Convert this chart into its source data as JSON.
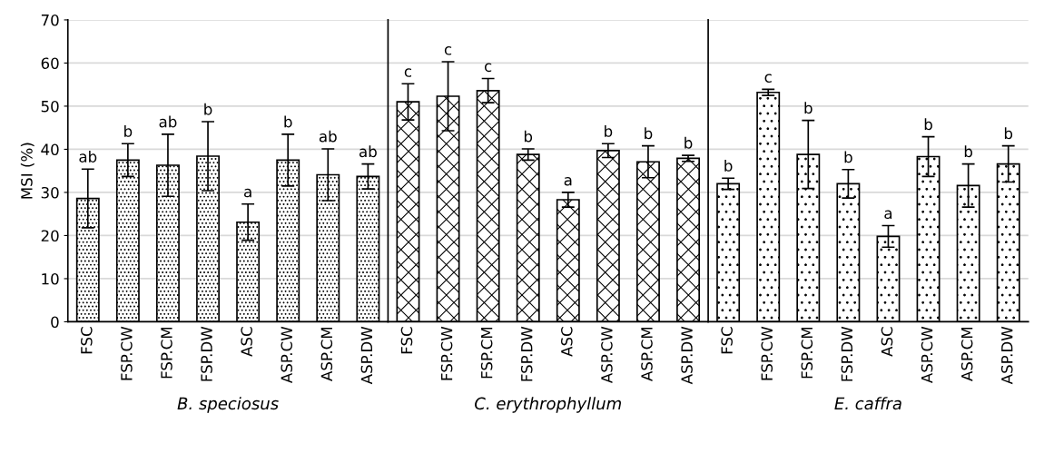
{
  "chart_data": [
    {
      "type": "bar",
      "xlabel": "B. speciosus",
      "ylabel": "MSI (%)",
      "categories": [
        "FSC",
        "FSP.CW",
        "FSP.CM",
        "FSP.DW",
        "ASC",
        "ASP.CW",
        "ASP.CM",
        "ASP.DW"
      ],
      "values": [
        28.6,
        37.5,
        36.3,
        38.4,
        23.1,
        37.5,
        34.1,
        33.7
      ],
      "errors": [
        6.8,
        3.8,
        7.2,
        8,
        4.2,
        6,
        6,
        2.9
      ],
      "value_labels": [
        "ab",
        "b",
        "ab",
        "b",
        "a",
        "b",
        "ab",
        "ab"
      ],
      "color": "#000000",
      "ylim": [
        0,
        70
      ],
      "yticks": [
        0,
        10,
        20,
        30,
        40,
        50,
        60,
        70
      ],
      "grid": "y"
    },
    {
      "type": "bar",
      "xlabel": "C. erythrophyllum",
      "categories": [
        "FSC",
        "FSP.CW",
        "FSP.CM",
        "FSP.DW",
        "ASC",
        "ASP.CW",
        "ASP.CM",
        "ASP.DW"
      ],
      "values": [
        51.0,
        52.3,
        53.6,
        38.8,
        28.3,
        39.7,
        37.1,
        37.9
      ],
      "errors": [
        4.2,
        8,
        2.8,
        1.3,
        1.7,
        1.6,
        3.7,
        0.7
      ],
      "value_labels": [
        "c",
        "c",
        "c",
        "b",
        "a",
        "b",
        "b",
        "b"
      ],
      "color": "#000000",
      "ylim": [
        0,
        70
      ],
      "yticks": [
        0,
        10,
        20,
        30,
        40,
        50,
        60,
        70
      ],
      "grid": "y",
      "tick_labels": "x"
    },
    {
      "type": "bar",
      "xlabel": "E. caffra",
      "categories": [
        "FSC",
        "FSP.CW",
        "FSP.CM",
        "FSP.DW",
        "ASC",
        "ASP.CW",
        "ASP.CM",
        "ASP.DW"
      ],
      "values": [
        32.0,
        53.2,
        38.8,
        32.0,
        19.8,
        38.3,
        31.6,
        36.6
      ],
      "errors": [
        1.3,
        0.7,
        7.9,
        3.3,
        2.5,
        4.6,
        5.0,
        4.2
      ],
      "value_labels": [
        "b",
        "c",
        "b",
        "b",
        "a",
        "b",
        "b",
        "b"
      ],
      "color": "#000000",
      "ylim": [
        0,
        70
      ],
      "yticks": [
        0,
        10,
        20,
        30,
        40,
        50,
        60,
        70
      ],
      "grid": "y",
      "tick_labels": "x"
    }
  ]
}
